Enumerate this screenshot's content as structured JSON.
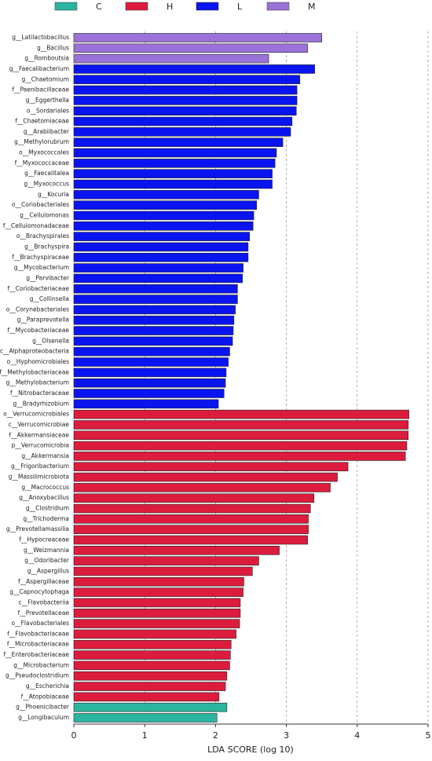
{
  "chart_data": {
    "type": "bar",
    "orientation": "horizontal",
    "xlabel": "LDA SCORE (log 10)",
    "xlim": [
      0,
      5
    ],
    "xticks": [
      0,
      1,
      2,
      3,
      4,
      5
    ],
    "grid": true,
    "legend": "top",
    "series": [
      {
        "name": "C",
        "color": "#2bb5a0",
        "categories": [
          "g__Phoenicibacter",
          "g__Longibaculum"
        ],
        "values": [
          2.16,
          2.02
        ]
      },
      {
        "name": "H",
        "color": "#dc1c3c",
        "categories": [
          "o__Verrucomicrobiales",
          "c__Verrucomicrobiae",
          "f__Akkermansiaceae",
          "p__Verrucomicrobia",
          "g__Akkermansia",
          "g__Frigoribacterium",
          "g__Massilimicrobiota",
          "g__Macrococcus",
          "g__Anoxybacillus",
          "g__Clostridium",
          "g__Trichoderma",
          "g__Prevotellamassilia",
          "f__Hypocreaceae",
          "g__Weizmannia",
          "g__Odoribacter",
          "g__Aspergillus",
          "f__Aspergillaceae",
          "g__Capnocytophaga",
          "c__Flavobacteriia",
          "f__Prevotellaceae",
          "o__Flavobacteriales",
          "f__Flavobacteriaceae",
          "f__Microbacteriaceae",
          "f__Enterobacteriaceae",
          "g__Microbacterium",
          "g__Pseudoclostridium",
          "g__Escherichia",
          "f__Atopobiaceae"
        ],
        "values": [
          4.73,
          4.72,
          4.72,
          4.7,
          4.68,
          3.87,
          3.72,
          3.62,
          3.39,
          3.34,
          3.31,
          3.31,
          3.3,
          2.9,
          2.61,
          2.52,
          2.4,
          2.39,
          2.35,
          2.35,
          2.34,
          2.29,
          2.22,
          2.21,
          2.2,
          2.16,
          2.14,
          2.05
        ]
      },
      {
        "name": "L",
        "color": "#0a14f0",
        "categories": [
          "g__Faecalibacterium",
          "g__Chaetomium",
          "f__Paenibacillaceae",
          "g__Eggerthella",
          "o__Sordariales",
          "f__Chaetomiaceae",
          "g__Arabiibacter",
          "g__Methylorubrum",
          "o__Myxococcales",
          "f__Myxococcaceae",
          "g__Faecalitalea",
          "g__Myxococcus",
          "g__Kocuria",
          "o__Coriobacteriales",
          "g__Cellulomonas",
          "f__Cellulomonadaceae",
          "o__Brachyspirales",
          "g__Brachyspira",
          "f__Brachyspiraceae",
          "g__Mycobacterium",
          "g__Parvibacter",
          "f__Coriobacteriaceae",
          "g__Collinsella",
          "o__Corynebacteriales",
          "g__Paraprevotella",
          "f__Mycobacteriaceae",
          "g__Olsenella",
          "c__Alphaproteobacteria",
          "o__Hyphomicrobiales",
          "f__Methylobacteriaceae",
          "g__Methylobacterium",
          "f__Nitrobacteraceae",
          "g__Bradyrhizobium"
        ],
        "values": [
          3.4,
          3.19,
          3.15,
          3.15,
          3.14,
          3.08,
          3.06,
          2.95,
          2.86,
          2.84,
          2.8,
          2.8,
          2.61,
          2.58,
          2.54,
          2.53,
          2.48,
          2.46,
          2.46,
          2.39,
          2.38,
          2.31,
          2.31,
          2.28,
          2.26,
          2.25,
          2.24,
          2.2,
          2.18,
          2.15,
          2.14,
          2.12,
          2.04
        ]
      },
      {
        "name": "M",
        "color": "#9a72d8",
        "categories": [
          "g__Latilactobacillus",
          "g__Bacillus",
          "g__Romboutsia"
        ],
        "values": [
          3.5,
          3.3,
          2.75
        ]
      }
    ]
  }
}
